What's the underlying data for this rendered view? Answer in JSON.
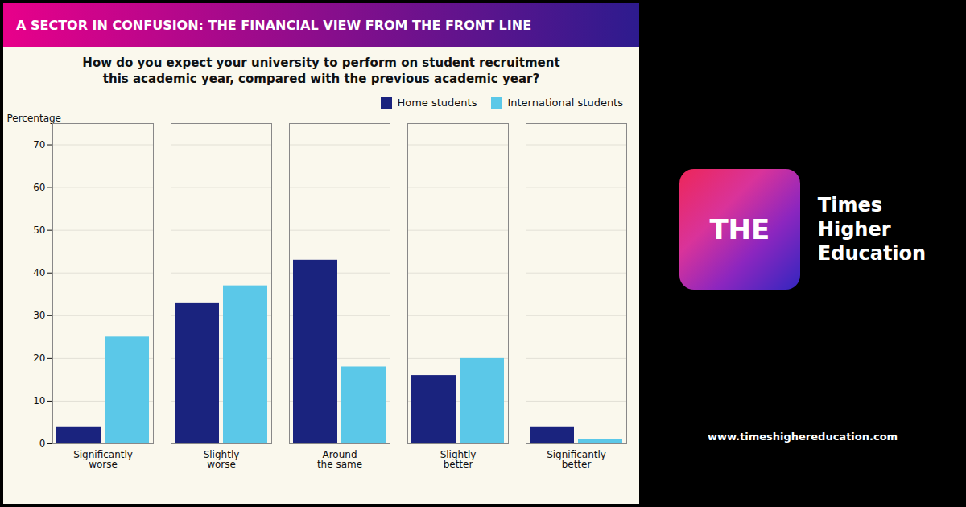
{
  "chart_data": {
    "type": "bar",
    "title": "A SECTOR IN CONFUSION: THE FINANCIAL VIEW FROM THE FRONT LINE",
    "subtitle": "How do you expect your university to perform on student recruitment\nthis academic year, compared with the previous academic year?",
    "categories": [
      "Significantly\nworse",
      "Slightly\nworse",
      "Around\nthe same",
      "Slightly\nbetter",
      "Significantly\nbetter"
    ],
    "series": [
      {
        "name": "Home students",
        "color": "#1a237e",
        "values": [
          4,
          33,
          43,
          16,
          4
        ]
      },
      {
        "name": "International students",
        "color": "#5bc8e8",
        "values": [
          25,
          37,
          18,
          20,
          1
        ]
      }
    ],
    "ylabel": "Percentage",
    "ylim": [
      0,
      75
    ],
    "yticks": [
      0,
      10,
      20,
      30,
      40,
      50,
      60,
      70
    ],
    "grid": true,
    "legend": "upper right",
    "annotations": [
      "THE",
      "Times\nHigher\nEducation",
      "www.timeshighereducation.com"
    ]
  }
}
